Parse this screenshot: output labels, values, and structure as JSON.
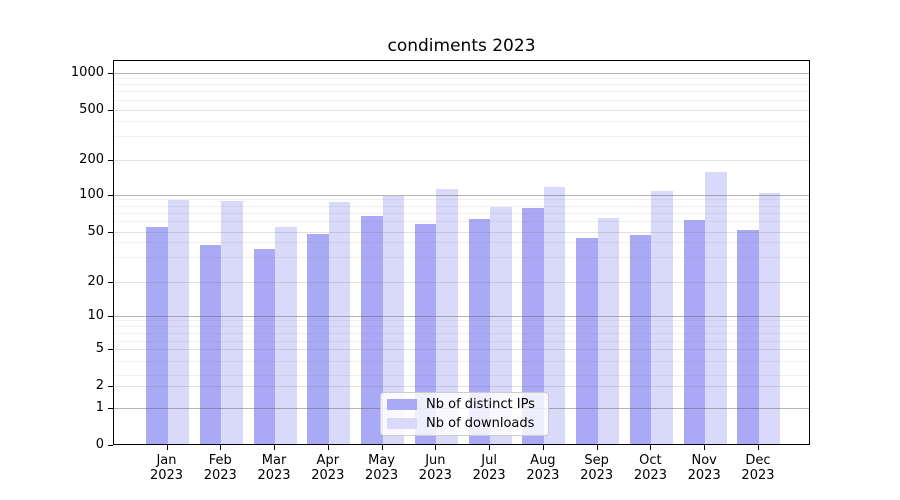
{
  "chart_data": {
    "type": "bar",
    "title": "condiments 2023",
    "categories": [
      "Jan",
      "Feb",
      "Mar",
      "Apr",
      "May",
      "Jun",
      "Jul",
      "Aug",
      "Sep",
      "Oct",
      "Nov",
      "Dec"
    ],
    "x_tick_second_line": "2023",
    "series": [
      {
        "name": "Nb of distinct IPs",
        "color": "#a9a9f5",
        "values": [
          53,
          38,
          35,
          47,
          66,
          56,
          62,
          77,
          43,
          46,
          61,
          50
        ]
      },
      {
        "name": "Nb of downloads",
        "color": "#d9d9fa",
        "values": [
          89,
          87,
          53,
          86,
          97,
          110,
          78,
          114,
          63,
          105,
          152,
          102
        ]
      }
    ],
    "yscale": "symlog",
    "y_ticks": [
      0,
      1,
      2,
      5,
      10,
      20,
      50,
      100,
      200,
      500,
      1000
    ],
    "ylim": [
      0,
      1100
    ],
    "xlabel": "",
    "ylabel": "",
    "grid": true,
    "legend_position": "lower center",
    "colors": {
      "background": "#ffffff",
      "axis": "#000000",
      "major_grid": "#b0b0b0",
      "minor_grid": "#e9e9e9"
    }
  }
}
